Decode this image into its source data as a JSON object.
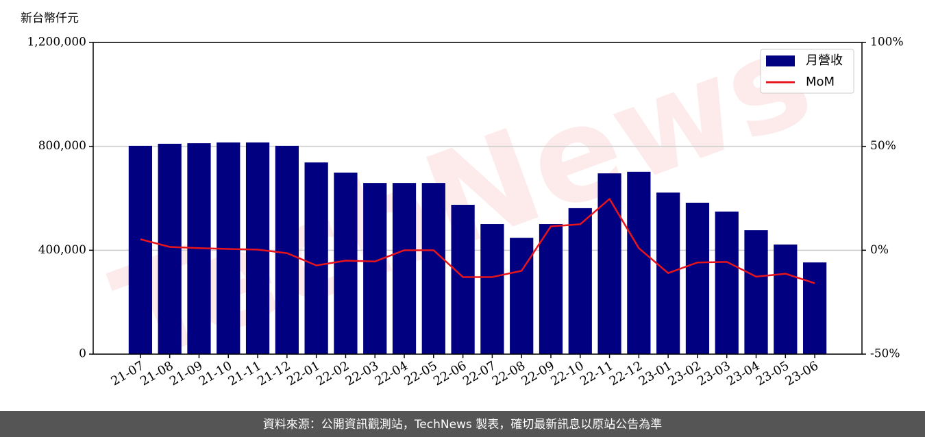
{
  "chart_data": {
    "type": "bar-line",
    "y_label": "新台幣仟元",
    "footer": "資料來源：公開資訊觀測站，TechNews 製表，確切最新訊息以原站公告為準",
    "watermark": "TechNews",
    "categories": [
      "21-07",
      "21-08",
      "21-09",
      "21-10",
      "21-11",
      "21-12",
      "22-01",
      "22-02",
      "22-03",
      "22-04",
      "22-05",
      "22-06",
      "22-07",
      "22-08",
      "22-09",
      "22-10",
      "22-11",
      "22-12",
      "23-01",
      "23-02",
      "23-03",
      "23-04",
      "23-05",
      "23-06"
    ],
    "series": [
      {
        "name": "月營收",
        "type": "bar",
        "color": "#000080",
        "values": [
          802000,
          810000,
          812000,
          815000,
          815000,
          802000,
          738000,
          699000,
          659000,
          659000,
          659000,
          575000,
          501000,
          448000,
          501000,
          562000,
          696000,
          702000,
          622000,
          583000,
          549000,
          477000,
          422000,
          353000
        ]
      },
      {
        "name": "MoM",
        "type": "line",
        "axis": "y2",
        "color": "#e8141c",
        "values": [
          5.3,
          1.6,
          1.0,
          0.6,
          0.3,
          -1.4,
          -7.3,
          -5.0,
          -5.4,
          0,
          0,
          -12.9,
          -12.9,
          -9.9,
          11.5,
          12.5,
          24.7,
          1.0,
          -11.0,
          -5.9,
          -5.6,
          -12.7,
          -11.3,
          -15.9
        ]
      }
    ],
    "ylim": [
      0,
      1200000
    ],
    "yticks": [
      0,
      {
        "value": 400000,
        "label": "400,000"
      },
      {
        "value": 800000,
        "label": "800,000"
      },
      {
        "value": 1200000,
        "label": "1,200,000"
      }
    ],
    "y2lim": [
      -50,
      100
    ],
    "y2ticks": [
      {
        "value": -50,
        "label": "-50%"
      },
      {
        "value": 0,
        "label": "0%"
      },
      {
        "value": 50,
        "label": "50%"
      },
      {
        "value": 100,
        "label": "100%"
      }
    ],
    "grid": true,
    "legend": "upper right"
  }
}
